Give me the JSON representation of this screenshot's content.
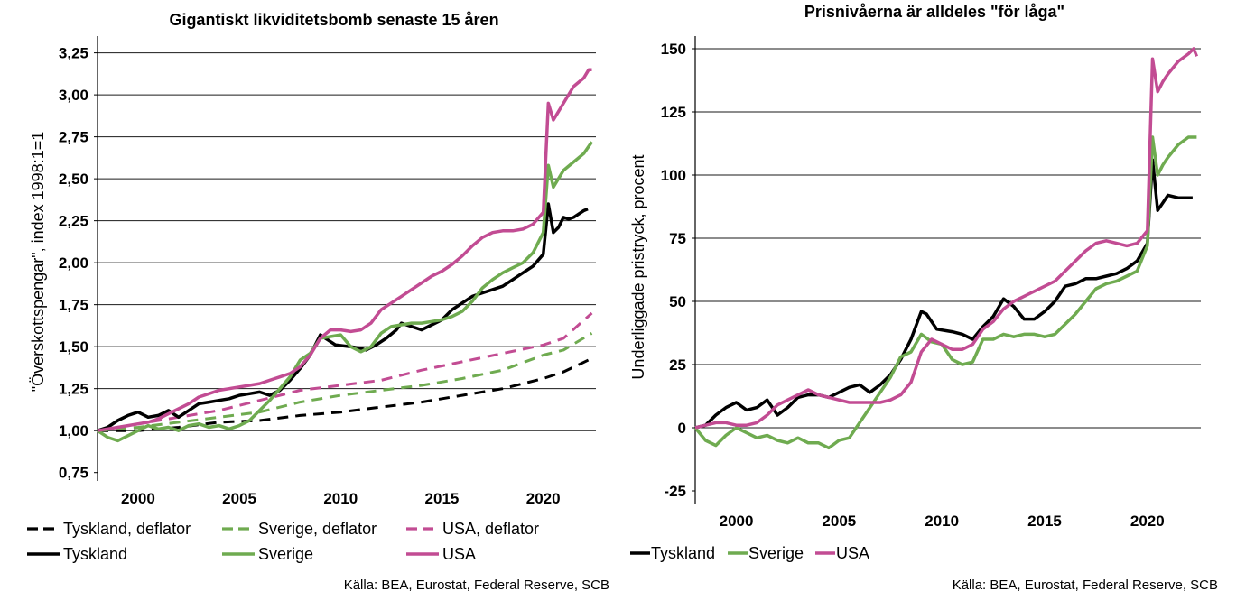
{
  "charts": [
    {
      "type": "line",
      "title": "Gigantiskt likviditetsbomb senaste 15 åren",
      "ylabel": "\"Överskottspengar\", index 1998:1=1",
      "xlabel": "",
      "xlim": [
        1998.0,
        2022.6
      ],
      "ylim": [
        0.7,
        3.35
      ],
      "yticks": [
        0.75,
        1.0,
        1.25,
        1.5,
        1.75,
        2.0,
        2.25,
        2.5,
        2.75,
        3.0,
        3.25
      ],
      "ytick_labels": [
        "0,75",
        "1,00",
        "1,25",
        "1,50",
        "1,75",
        "2,00",
        "2,25",
        "2,50",
        "2,75",
        "3,00",
        "3,25"
      ],
      "grid_values": [
        1.0,
        1.25,
        1.5,
        1.75,
        2.0,
        2.25,
        2.5,
        2.75,
        3.0,
        3.25
      ],
      "xticks": [
        2000,
        2005,
        2010,
        2015,
        2020
      ],
      "xtick_labels": [
        "2000",
        "2005",
        "2010",
        "2015",
        "2020"
      ],
      "legend_placement": "bottom",
      "source": "Källa: BEA, Eurostat, Federal Reserve, SCB",
      "series": [
        {
          "name": "Tyskland, deflator",
          "color": "#000000",
          "dashed": true,
          "x": [
            1998.0,
            2000.0,
            2002.0,
            2004.0,
            2006.0,
            2008.0,
            2010.0,
            2012.0,
            2014.0,
            2016.0,
            2018.0,
            2020.0,
            2021.0,
            2022.4
          ],
          "y": [
            1.0,
            1.0,
            1.02,
            1.05,
            1.06,
            1.09,
            1.11,
            1.14,
            1.17,
            1.21,
            1.25,
            1.31,
            1.35,
            1.43
          ]
        },
        {
          "name": "Sverige, deflator",
          "color": "#6FAB50",
          "dashed": true,
          "x": [
            1998.0,
            2000.0,
            2002.0,
            2004.0,
            2006.0,
            2008.0,
            2010.0,
            2012.0,
            2014.0,
            2016.0,
            2018.0,
            2020.0,
            2021.0,
            2022.4
          ],
          "y": [
            1.0,
            1.02,
            1.05,
            1.08,
            1.11,
            1.17,
            1.21,
            1.24,
            1.27,
            1.31,
            1.36,
            1.45,
            1.48,
            1.58
          ]
        },
        {
          "name": "USA, deflator",
          "color": "#C24C93",
          "dashed": true,
          "x": [
            1998.0,
            2000.0,
            2002.0,
            2004.0,
            2006.0,
            2008.0,
            2010.0,
            2012.0,
            2014.0,
            2016.0,
            2018.0,
            2020.0,
            2021.0,
            2022.4
          ],
          "y": [
            1.0,
            1.04,
            1.08,
            1.12,
            1.18,
            1.24,
            1.27,
            1.3,
            1.36,
            1.41,
            1.46,
            1.51,
            1.55,
            1.7
          ]
        },
        {
          "name": "Tyskland",
          "color": "#000000",
          "dashed": false,
          "x": [
            1998.0,
            1998.5,
            1999.0,
            1999.5,
            2000.0,
            2000.5,
            2001.0,
            2001.5,
            2002.0,
            2002.5,
            2003.0,
            2003.5,
            2004.0,
            2004.5,
            2005.0,
            2005.5,
            2006.0,
            2006.5,
            2007.0,
            2007.5,
            2008.0,
            2008.5,
            2009.0,
            2009.25,
            2009.75,
            2010.5,
            2011.0,
            2011.25,
            2011.75,
            2012.25,
            2012.75,
            2013.0,
            2013.5,
            2014.0,
            2014.5,
            2015.0,
            2015.5,
            2016.0,
            2016.5,
            2017.0,
            2017.5,
            2018.0,
            2018.5,
            2019.0,
            2019.5,
            2020.0,
            2020.25,
            2020.5,
            2020.75,
            2021.0,
            2021.25,
            2021.5,
            2021.75,
            2022.0,
            2022.2
          ],
          "y": [
            1.0,
            1.02,
            1.06,
            1.09,
            1.11,
            1.08,
            1.09,
            1.12,
            1.08,
            1.12,
            1.16,
            1.17,
            1.18,
            1.19,
            1.21,
            1.22,
            1.23,
            1.21,
            1.24,
            1.3,
            1.37,
            1.45,
            1.57,
            1.55,
            1.51,
            1.5,
            1.49,
            1.48,
            1.51,
            1.55,
            1.6,
            1.64,
            1.62,
            1.6,
            1.63,
            1.66,
            1.72,
            1.76,
            1.8,
            1.82,
            1.84,
            1.86,
            1.9,
            1.94,
            1.98,
            2.05,
            2.35,
            2.18,
            2.21,
            2.27,
            2.26,
            2.27,
            2.29,
            2.31,
            2.32
          ]
        },
        {
          "name": "Sverige",
          "color": "#6FAB50",
          "dashed": false,
          "x": [
            1998.0,
            1998.5,
            1999.0,
            1999.5,
            2000.0,
            2000.5,
            2001.0,
            2001.5,
            2002.0,
            2002.5,
            2003.0,
            2003.5,
            2004.0,
            2004.5,
            2005.0,
            2005.5,
            2006.0,
            2006.5,
            2007.0,
            2007.5,
            2008.0,
            2008.5,
            2009.0,
            2009.5,
            2010.0,
            2010.5,
            2011.0,
            2011.5,
            2012.0,
            2012.5,
            2013.0,
            2013.5,
            2014.0,
            2014.5,
            2015.0,
            2015.5,
            2016.0,
            2016.5,
            2017.0,
            2017.5,
            2018.0,
            2018.5,
            2019.0,
            2019.5,
            2020.0,
            2020.25,
            2020.5,
            2020.75,
            2021.0,
            2021.5,
            2022.0,
            2022.4
          ],
          "y": [
            1.0,
            0.96,
            0.94,
            0.97,
            1.0,
            1.03,
            1.01,
            1.02,
            1.0,
            1.03,
            1.04,
            1.02,
            1.03,
            1.01,
            1.03,
            1.06,
            1.12,
            1.18,
            1.25,
            1.32,
            1.42,
            1.46,
            1.55,
            1.56,
            1.57,
            1.5,
            1.47,
            1.5,
            1.58,
            1.62,
            1.63,
            1.64,
            1.64,
            1.65,
            1.66,
            1.68,
            1.71,
            1.77,
            1.85,
            1.9,
            1.94,
            1.97,
            2.0,
            2.06,
            2.18,
            2.58,
            2.45,
            2.5,
            2.55,
            2.6,
            2.65,
            2.72
          ]
        },
        {
          "name": "USA",
          "color": "#C24C93",
          "dashed": false,
          "x": [
            1998.0,
            1998.5,
            1999.0,
            1999.5,
            2000.0,
            2000.5,
            2001.0,
            2001.5,
            2002.0,
            2002.5,
            2003.0,
            2003.5,
            2004.0,
            2004.5,
            2005.0,
            2005.5,
            2006.0,
            2006.5,
            2007.0,
            2007.5,
            2008.0,
            2008.5,
            2009.0,
            2009.5,
            2010.0,
            2010.5,
            2011.0,
            2011.5,
            2012.0,
            2012.5,
            2013.0,
            2013.5,
            2014.0,
            2014.5,
            2015.0,
            2015.5,
            2016.0,
            2016.5,
            2017.0,
            2017.5,
            2018.0,
            2018.5,
            2019.0,
            2019.5,
            2020.0,
            2020.25,
            2020.5,
            2020.75,
            2021.0,
            2021.5,
            2022.0,
            2022.25,
            2022.4
          ],
          "y": [
            1.0,
            1.01,
            1.02,
            1.03,
            1.04,
            1.05,
            1.07,
            1.1,
            1.13,
            1.16,
            1.2,
            1.22,
            1.24,
            1.25,
            1.26,
            1.27,
            1.28,
            1.3,
            1.32,
            1.34,
            1.38,
            1.45,
            1.55,
            1.6,
            1.6,
            1.59,
            1.6,
            1.64,
            1.72,
            1.76,
            1.8,
            1.84,
            1.88,
            1.92,
            1.95,
            1.99,
            2.04,
            2.1,
            2.15,
            2.18,
            2.19,
            2.19,
            2.2,
            2.23,
            2.3,
            2.95,
            2.85,
            2.9,
            2.95,
            3.05,
            3.1,
            3.15,
            3.15
          ]
        }
      ]
    },
    {
      "type": "line",
      "title": "Prisnivåerna är alldeles \"för låga\"",
      "ylabel": "Underliggade pristryck, procent",
      "xlabel": "",
      "xlim": [
        1998.0,
        2022.6
      ],
      "ylim": [
        -30,
        155
      ],
      "yticks": [
        -25,
        0,
        25,
        50,
        75,
        100,
        125,
        150
      ],
      "ytick_labels": [
        "-25",
        "0",
        "25",
        "50",
        "75",
        "100",
        "125",
        "150"
      ],
      "grid_values": [
        0,
        25,
        50,
        75,
        100,
        125,
        150
      ],
      "xticks": [
        2000,
        2005,
        2010,
        2015,
        2020
      ],
      "xtick_labels": [
        "2000",
        "2005",
        "2010",
        "2015",
        "2020"
      ],
      "legend_placement": "bottom",
      "source": "Källa: BEA, Eurostat, Federal Reserve, SCB",
      "series": [
        {
          "name": "Tyskland",
          "color": "#000000",
          "dashed": false,
          "x": [
            1998.0,
            1998.5,
            1999.0,
            1999.5,
            2000.0,
            2000.5,
            2001.0,
            2001.5,
            2002.0,
            2002.5,
            2003.0,
            2003.5,
            2004.0,
            2004.5,
            2005.0,
            2005.5,
            2006.0,
            2006.5,
            2007.0,
            2007.5,
            2008.0,
            2008.5,
            2009.0,
            2009.25,
            2009.75,
            2010.5,
            2011.0,
            2011.5,
            2012.0,
            2012.5,
            2013.0,
            2013.5,
            2014.0,
            2014.5,
            2015.0,
            2015.5,
            2016.0,
            2016.5,
            2017.0,
            2017.5,
            2018.0,
            2018.5,
            2019.0,
            2019.5,
            2020.0,
            2020.25,
            2020.5,
            2020.75,
            2021.0,
            2021.5,
            2022.0,
            2022.2
          ],
          "y": [
            0,
            1,
            5,
            8,
            10,
            7,
            8,
            11,
            5,
            8,
            12,
            13,
            13,
            12,
            14,
            16,
            17,
            14,
            17,
            21,
            27,
            35,
            46,
            45,
            39,
            38,
            37,
            35,
            40,
            44,
            51,
            48,
            43,
            43,
            46,
            50,
            56,
            57,
            59,
            59,
            60,
            61,
            63,
            66,
            73,
            106,
            86,
            89,
            92,
            91,
            91,
            91
          ]
        },
        {
          "name": "Sverige",
          "color": "#6FAB50",
          "dashed": false,
          "x": [
            1998.0,
            1998.5,
            1999.0,
            1999.5,
            2000.0,
            2000.5,
            2001.0,
            2001.5,
            2002.0,
            2002.5,
            2003.0,
            2003.5,
            2004.0,
            2004.5,
            2005.0,
            2005.5,
            2006.0,
            2006.5,
            2007.0,
            2007.5,
            2008.0,
            2008.5,
            2009.0,
            2009.5,
            2010.0,
            2010.5,
            2011.0,
            2011.5,
            2012.0,
            2012.5,
            2013.0,
            2013.5,
            2014.0,
            2014.5,
            2015.0,
            2015.5,
            2016.0,
            2016.5,
            2017.0,
            2017.5,
            2018.0,
            2018.5,
            2019.0,
            2019.5,
            2020.0,
            2020.25,
            2020.5,
            2020.75,
            2021.0,
            2021.5,
            2022.0,
            2022.4
          ],
          "y": [
            0,
            -5,
            -7,
            -3,
            0,
            -2,
            -4,
            -3,
            -5,
            -6,
            -4,
            -6,
            -6,
            -8,
            -5,
            -4,
            2,
            8,
            14,
            20,
            28,
            30,
            37,
            34,
            33,
            27,
            25,
            26,
            35,
            35,
            37,
            36,
            37,
            37,
            36,
            37,
            41,
            45,
            50,
            55,
            57,
            58,
            60,
            62,
            72,
            115,
            100,
            104,
            107,
            112,
            115,
            115
          ]
        },
        {
          "name": "USA",
          "color": "#C24C93",
          "dashed": false,
          "x": [
            1998.0,
            1998.5,
            1999.0,
            1999.5,
            2000.0,
            2000.5,
            2001.0,
            2001.5,
            2002.0,
            2002.5,
            2003.0,
            2003.5,
            2004.0,
            2004.5,
            2005.0,
            2005.5,
            2006.0,
            2006.5,
            2007.0,
            2007.5,
            2008.0,
            2008.5,
            2009.0,
            2009.5,
            2010.0,
            2010.5,
            2011.0,
            2011.5,
            2012.0,
            2012.5,
            2013.0,
            2013.5,
            2014.0,
            2014.5,
            2015.0,
            2015.5,
            2016.0,
            2016.5,
            2017.0,
            2017.5,
            2018.0,
            2018.5,
            2019.0,
            2019.5,
            2020.0,
            2020.25,
            2020.5,
            2020.75,
            2021.0,
            2021.5,
            2022.0,
            2022.25,
            2022.4
          ],
          "y": [
            0,
            1,
            2,
            2,
            1,
            1,
            2,
            5,
            9,
            11,
            13,
            15,
            13,
            12,
            11,
            10,
            10,
            10,
            10,
            11,
            13,
            18,
            30,
            35,
            33,
            31,
            31,
            33,
            39,
            42,
            47,
            50,
            52,
            54,
            56,
            58,
            62,
            66,
            70,
            73,
            74,
            73,
            72,
            73,
            78,
            146,
            133,
            137,
            140,
            145,
            148,
            150,
            147
          ]
        }
      ]
    }
  ],
  "legends": {
    "left": [
      "Tyskland, deflator",
      "Sverige, deflator",
      "USA, deflator",
      "Tyskland",
      "Sverige",
      "USA"
    ],
    "right": [
      "Tyskland",
      "Sverige",
      "USA"
    ]
  }
}
